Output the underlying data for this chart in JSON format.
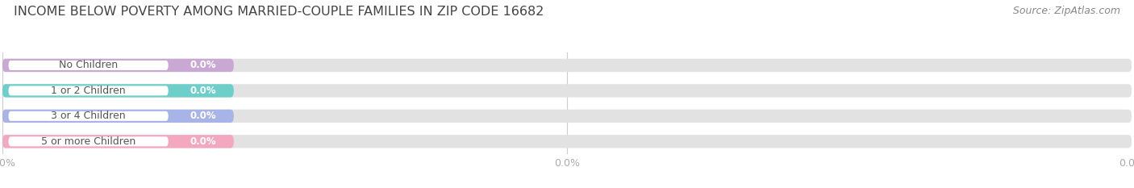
{
  "title": "INCOME BELOW POVERTY AMONG MARRIED-COUPLE FAMILIES IN ZIP CODE 16682",
  "source": "Source: ZipAtlas.com",
  "categories": [
    "No Children",
    "1 or 2 Children",
    "3 or 4 Children",
    "5 or more Children"
  ],
  "values": [
    0.0,
    0.0,
    0.0,
    0.0
  ],
  "bar_colors": [
    "#c9a8d4",
    "#6ecfca",
    "#a8b4e8",
    "#f4a8c0"
  ],
  "bar_bg_color": "#e2e2e2",
  "background_color": "#ffffff",
  "xlim": [
    0,
    100
  ],
  "title_fontsize": 11.5,
  "label_fontsize": 9,
  "value_fontsize": 8.5,
  "source_fontsize": 9,
  "tick_fontsize": 9,
  "tick_color": "#aaaaaa",
  "label_color": "#555555",
  "title_color": "#444444"
}
